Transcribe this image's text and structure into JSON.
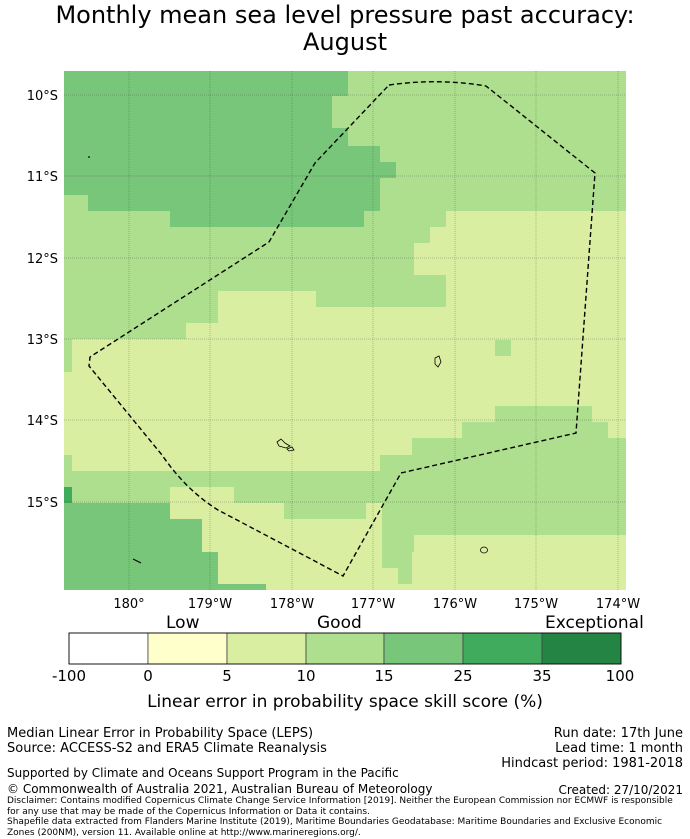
{
  "title": {
    "line1": "Monthly mean sea level pressure past accuracy:",
    "line2": "August"
  },
  "map": {
    "lat_labels": [
      "10°S",
      "11°S",
      "12°S",
      "13°S",
      "14°S",
      "15°S"
    ],
    "lon_labels": [
      "180°",
      "179°W",
      "178°W",
      "177°W",
      "176°W",
      "175°W",
      "174°W"
    ],
    "colors": {
      "c5_10": "#d9eea1",
      "c10_15": "#addf8e",
      "c15_25": "#78c679",
      "ocean_dark": "#41ab5d"
    }
  },
  "colorbar": {
    "categories": [
      "Low",
      "Good",
      "Exceptional"
    ],
    "ticks": [
      "-100",
      "0",
      "5",
      "10",
      "15",
      "25",
      "35",
      "100"
    ],
    "colors": [
      "#ffffff",
      "#ffffcc",
      "#d9eea1",
      "#addf8e",
      "#78c679",
      "#41ab5d",
      "#238443"
    ],
    "label": "Linear error in probability space skill score (%)"
  },
  "footer": {
    "method": "Median Linear Error in Probability Space (LEPS)",
    "source": "Source: ACCESS-S2 and ERA5 Climate Reanalysis",
    "run_date": "Run date: 17th June",
    "lead_time": "Lead time: 1 month",
    "hindcast": "Hindcast period: 1981-2018",
    "support": "Supported by Climate and Oceans Support Program in the Pacific",
    "copyright": "© Commonwealth of Australia 2021, Australian Bureau of Meteorology",
    "created": "Created: 27/10/2021",
    "disclaimer": "Disclaimer: Contains modified Copernicus Climate Change Service Information [2019]. Neither the European Commission nor ECMWF is responsible for any use that may be made of the Copernicus Information or Data it contains.",
    "shapefile": "Shapefile data extracted from Flanders Marine Institute (2019), Maritime Boundaries Geodatabase: Maritime Boundaries and Exclusive Economic Zones (200NM), version 11. Available online at http://www.marineregions.org/."
  }
}
